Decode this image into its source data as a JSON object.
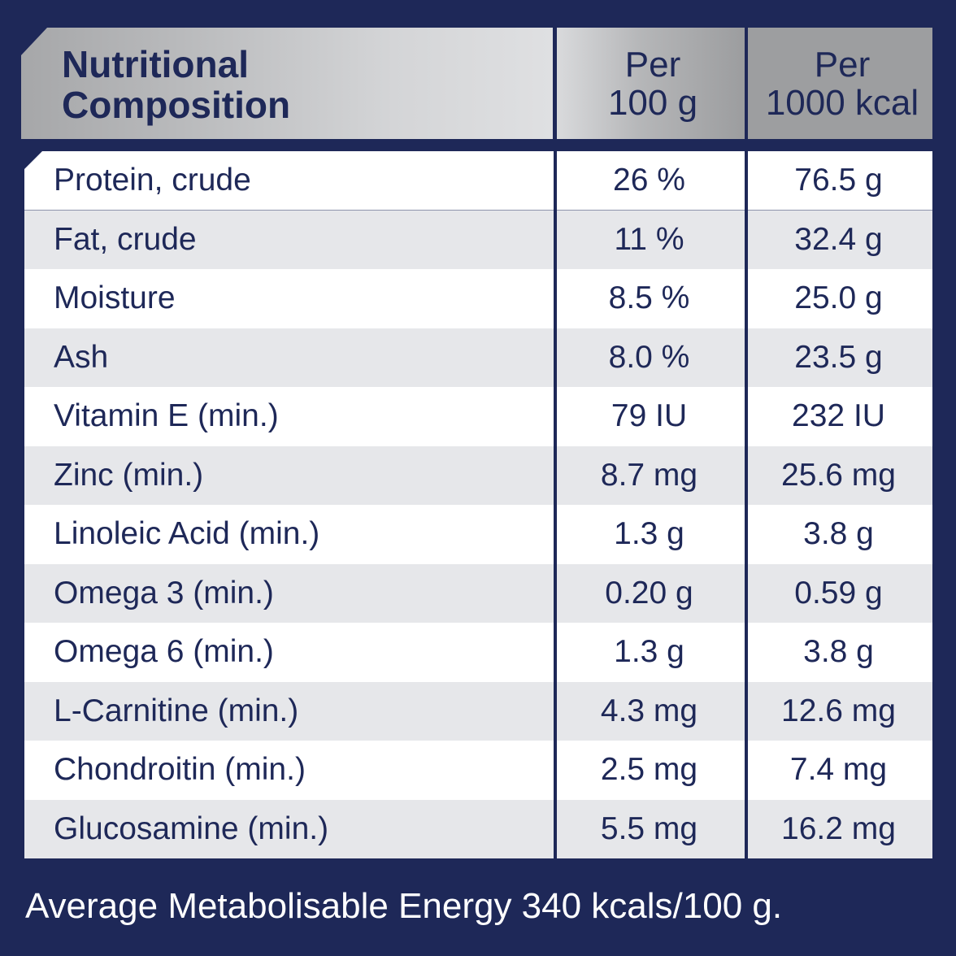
{
  "header": {
    "title_line1": "Nutritional",
    "title_line2": "Composition",
    "col1_line1": "Per",
    "col1_line2": "100 g",
    "col2_line1": "Per",
    "col2_line2": "1000 kcal"
  },
  "rows": [
    {
      "name": "Protein, crude",
      "per100g": "26 %",
      "per1000kcal": "76.5 g"
    },
    {
      "name": "Fat, crude",
      "per100g": "11 %",
      "per1000kcal": "32.4 g"
    },
    {
      "name": "Moisture",
      "per100g": "8.5 %",
      "per1000kcal": "25.0 g"
    },
    {
      "name": "Ash",
      "per100g": "8.0 %",
      "per1000kcal": "23.5 g"
    },
    {
      "name": "Vitamin E (min.)",
      "per100g": "79 IU",
      "per1000kcal": "232 IU"
    },
    {
      "name": "Zinc (min.)",
      "per100g": "8.7 mg",
      "per1000kcal": "25.6 mg"
    },
    {
      "name": "Linoleic Acid (min.)",
      "per100g": "1.3 g",
      "per1000kcal": "3.8 g"
    },
    {
      "name": "Omega 3 (min.)",
      "per100g": "0.20 g",
      "per1000kcal": "0.59 g"
    },
    {
      "name": "Omega 6 (min.)",
      "per100g": "1.3 g",
      "per1000kcal": "3.8 g"
    },
    {
      "name": "L-Carnitine (min.)",
      "per100g": "4.3 mg",
      "per1000kcal": "12.6 mg"
    },
    {
      "name": "Chondroitin (min.)",
      "per100g": "2.5 mg",
      "per1000kcal": "7.4 mg"
    },
    {
      "name": "Glucosamine (min.)",
      "per100g": "5.5 mg",
      "per1000kcal": "16.2 mg"
    }
  ],
  "footer": "Average Metabolisable Energy 340 kcals/100 g.",
  "colors": {
    "navy": "#1e2858",
    "row_alt": "#e6e7ea",
    "header_silver": "#9d9ea0"
  }
}
